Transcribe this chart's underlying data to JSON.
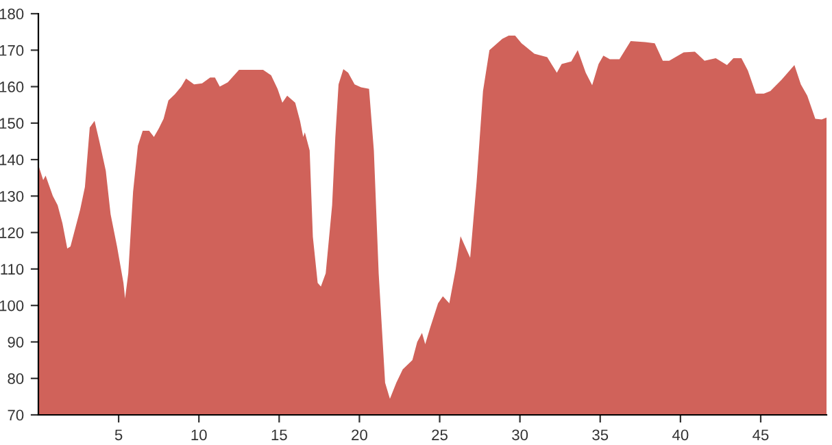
{
  "chart_data": {
    "type": "area",
    "x": [
      0,
      0.3,
      0.45,
      0.7,
      0.9,
      1.2,
      1.5,
      1.8,
      2.0,
      2.6,
      2.9,
      3.2,
      3.5,
      3.8,
      4.2,
      4.5,
      4.9,
      5.3,
      5.4,
      5.6,
      5.9,
      6.2,
      6.5,
      6.9,
      7.2,
      7.5,
      7.8,
      8.1,
      8.5,
      8.9,
      9.2,
      9.7,
      10.2,
      10.7,
      11.0,
      11.3,
      11.8,
      12.5,
      13.3,
      14.0,
      14.5,
      14.9,
      15.2,
      15.5,
      16.0,
      16.3,
      16.5,
      16.6,
      16.9,
      17.1,
      17.4,
      17.6,
      17.9,
      18.3,
      18.5,
      18.7,
      19.0,
      19.3,
      19.7,
      20.1,
      20.6,
      20.9,
      21.2,
      21.6,
      21.9,
      22.3,
      22.7,
      23.3,
      23.6,
      23.9,
      24.1,
      24.4,
      24.9,
      25.2,
      25.6,
      26.0,
      26.3,
      26.9,
      27.3,
      27.7,
      28.1,
      28.9,
      29.3,
      29.7,
      30.1,
      30.9,
      31.7,
      32.3,
      32.6,
      33.2,
      33.6,
      34.1,
      34.5,
      34.9,
      35.2,
      35.6,
      36.2,
      36.9,
      37.8,
      38.4,
      38.9,
      39.3,
      40.2,
      40.9,
      41.5,
      42.2,
      42.9,
      43.3,
      43.8,
      44.2,
      44.7,
      45.2,
      45.6,
      46.3,
      47.1,
      47.5,
      47.9,
      48.4,
      48.8,
      49.1
    ],
    "values": [
      138.5,
      134.4,
      135.6,
      132.5,
      130,
      127.5,
      122.5,
      115.6,
      116.2,
      126.2,
      132.5,
      148.8,
      150.6,
      145,
      136.9,
      125,
      116.2,
      106.2,
      101.9,
      108.8,
      131.2,
      143.8,
      147.9,
      147.9,
      146.2,
      148.5,
      151.2,
      156.2,
      157.9,
      160,
      162.2,
      160.6,
      160.9,
      162.5,
      162.5,
      160,
      161.2,
      164.6,
      164.6,
      164.6,
      163.1,
      159.4,
      155.6,
      157.5,
      155.6,
      150.6,
      146.2,
      147.5,
      142.5,
      118.8,
      106.2,
      105.2,
      108.8,
      127.5,
      146.2,
      160.6,
      164.8,
      163.8,
      160.6,
      159.8,
      159.4,
      142.5,
      108.8,
      78.8,
      74.4,
      78.8,
      82.5,
      85,
      90,
      92.5,
      89.4,
      93.8,
      100.6,
      102.5,
      100.6,
      110,
      119,
      113.1,
      133.8,
      158.8,
      170,
      173.1,
      174,
      174,
      171.9,
      169,
      168.1,
      163.8,
      166.2,
      166.9,
      170,
      163.8,
      160.4,
      166.2,
      168.5,
      167.5,
      167.5,
      172.5,
      172.2,
      171.9,
      167.1,
      167.1,
      169.4,
      169.6,
      167.1,
      167.8,
      165.9,
      167.8,
      167.8,
      164.4,
      158.1,
      158.1,
      158.8,
      161.9,
      165.9,
      160.6,
      157.5,
      151.2,
      151,
      151.5
    ],
    "color": "#d0625a",
    "xlim": [
      0,
      49.1
    ],
    "xticks": [
      5,
      10,
      15,
      20,
      25,
      30,
      35,
      40,
      45
    ],
    "ylim": [
      70,
      180
    ],
    "yticks": [
      70,
      80,
      90,
      100,
      110,
      120,
      130,
      140,
      150,
      160,
      170,
      180
    ],
    "grid": false,
    "legend": false
  }
}
